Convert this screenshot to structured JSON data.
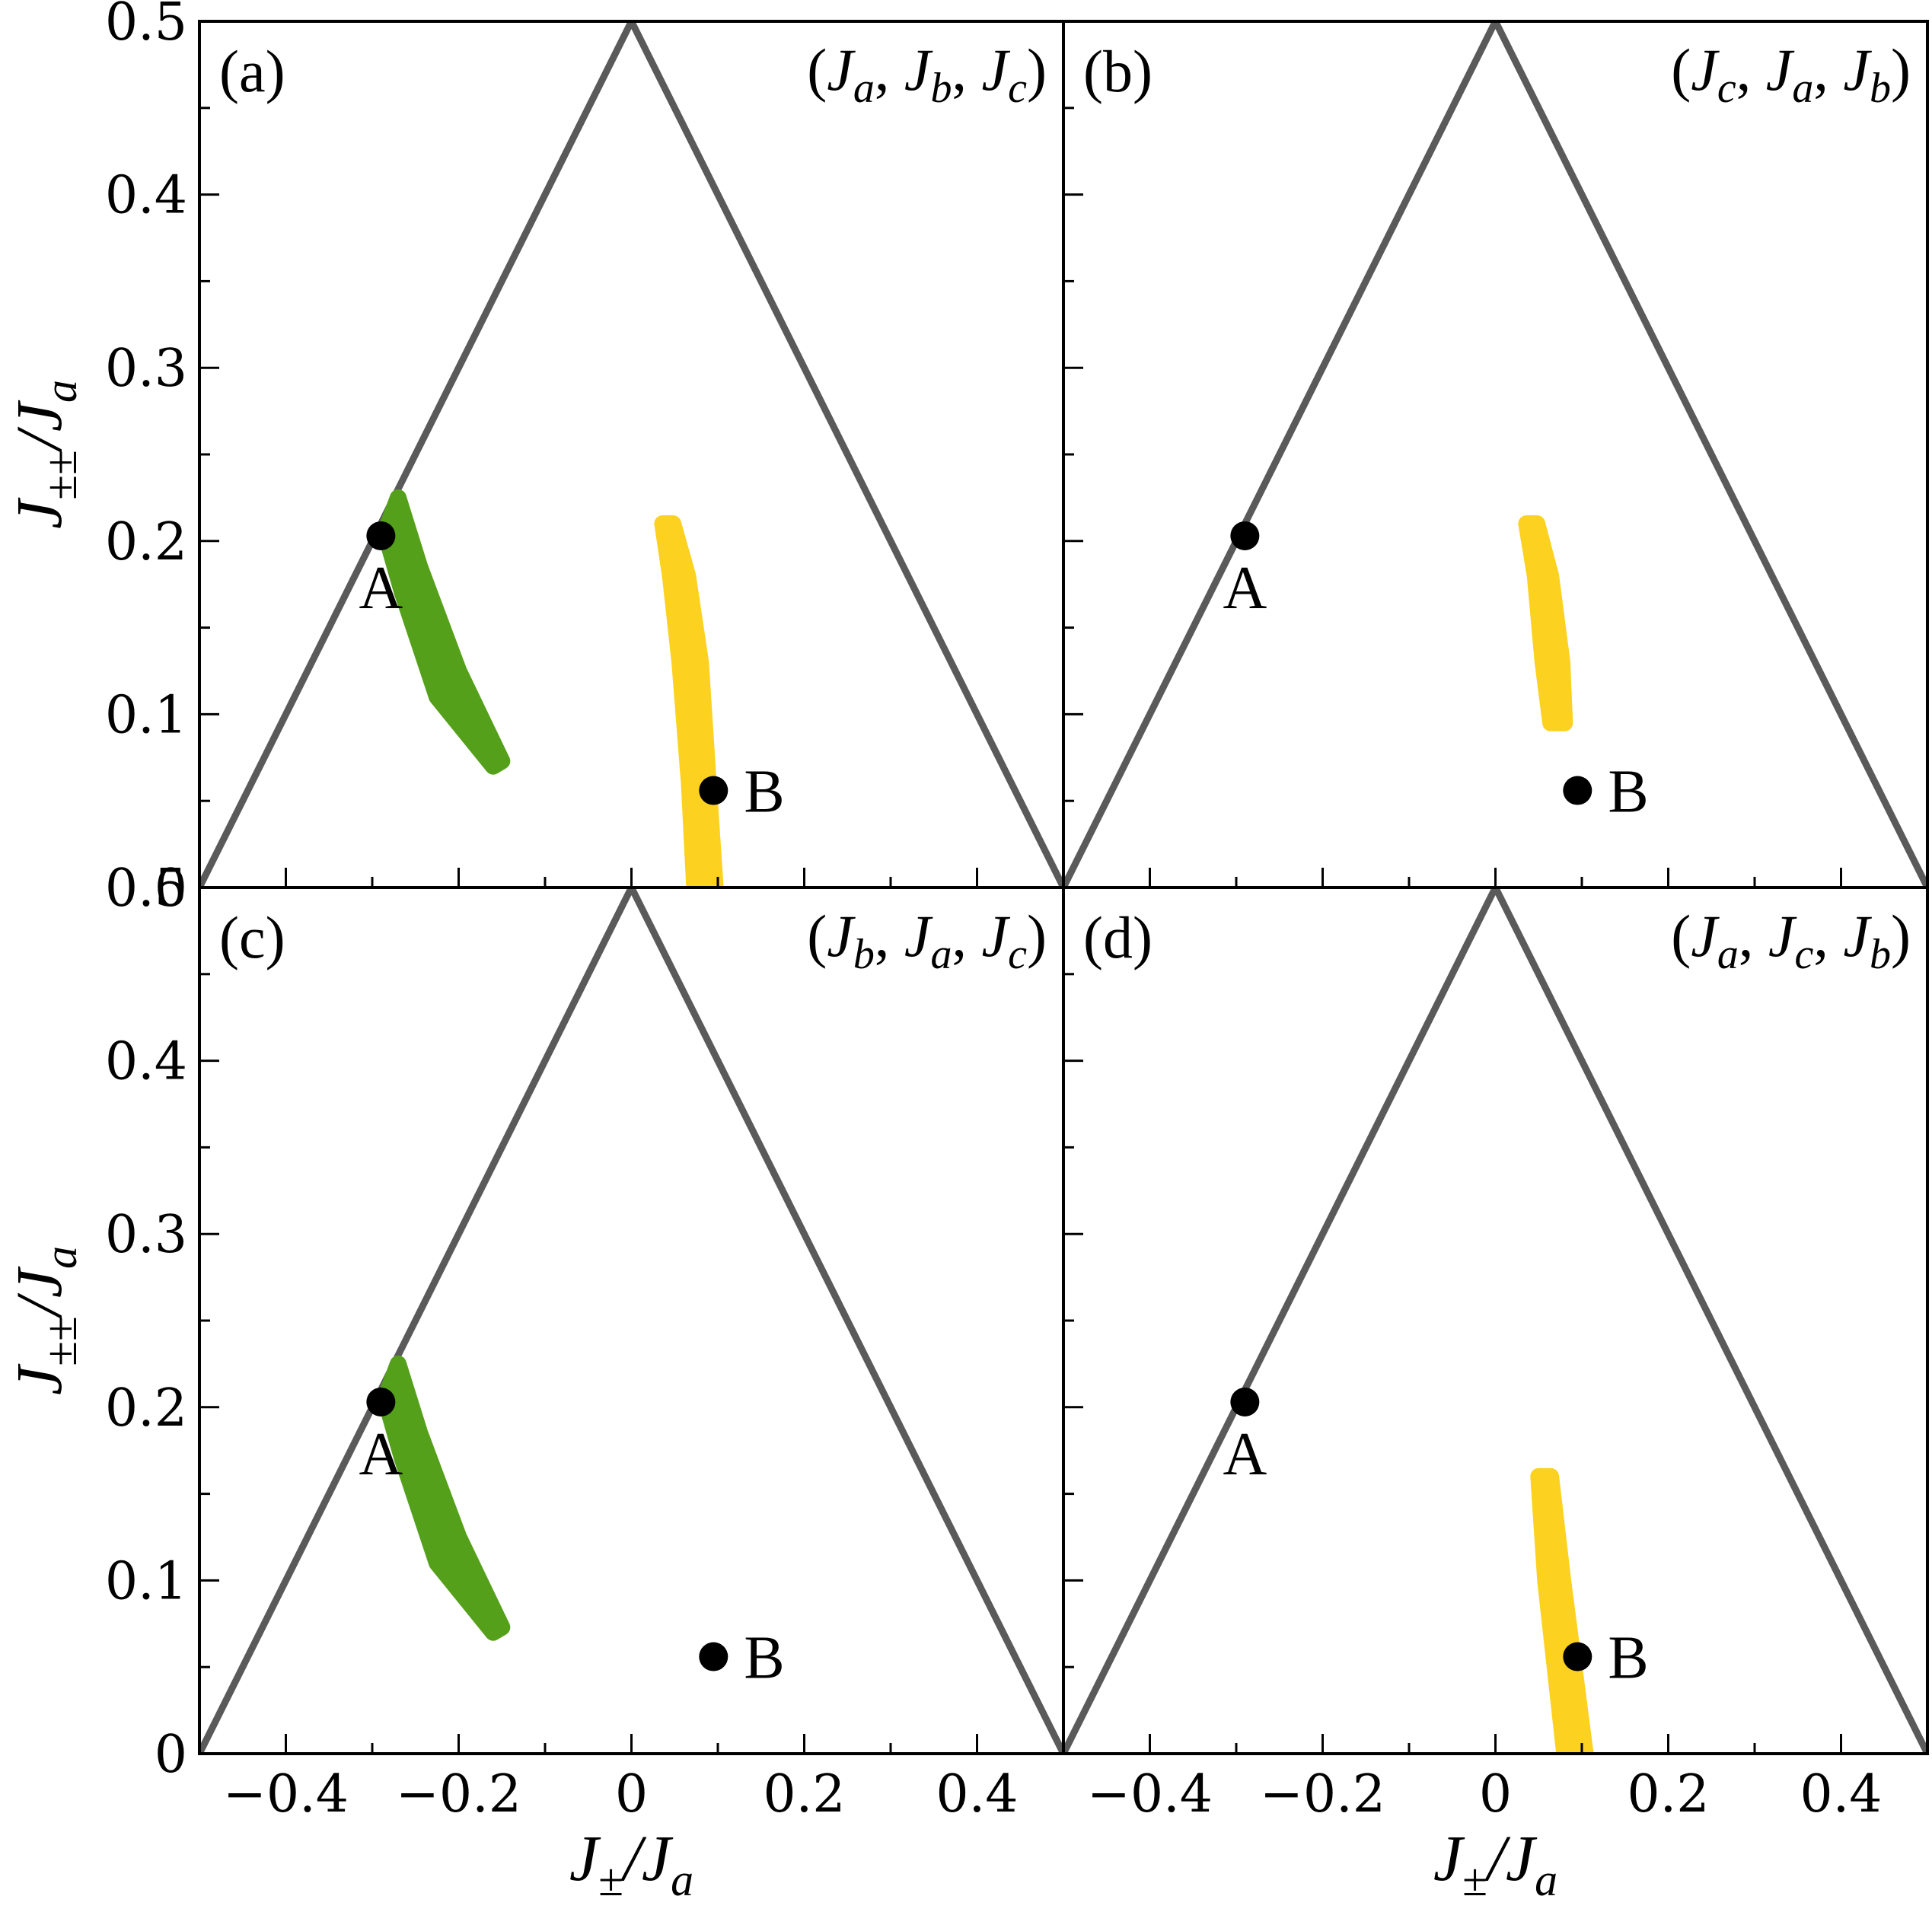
{
  "chart_data": {
    "type": "scatter",
    "colors": {
      "green": "#55a01a",
      "yellow": "#fdd120",
      "triangle": "#5a5a5a",
      "point": "#000000"
    },
    "xlim": [
      -0.5,
      0.5
    ],
    "ylim": [
      0,
      0.5
    ],
    "x_ticks": [
      -0.4,
      -0.2,
      0,
      0.2,
      0.4
    ],
    "x_tick_labels": [
      "−0.4",
      "−0.2",
      "0",
      "0.2",
      "0.4"
    ],
    "y_ticks": [
      0,
      0.1,
      0.2,
      0.3,
      0.4,
      0.5
    ],
    "y_tick_labels": [
      "0",
      "0.1",
      "0.2",
      "0.3",
      "0.4",
      "0.5"
    ],
    "xlabel": {
      "main": "J",
      "sub1": "±",
      "mid": "/J",
      "sub2": "a"
    },
    "ylabel": {
      "main": "J",
      "sub1": "±±",
      "mid": "/J",
      "sub2": "a"
    },
    "triangle": {
      "x": [
        -0.5,
        0,
        0.5
      ],
      "y": [
        0,
        0.5,
        0
      ]
    },
    "points": [
      {
        "label": "A",
        "x": -0.29,
        "y": 0.203
      },
      {
        "label": "B",
        "x": 0.095,
        "y": 0.056
      }
    ],
    "green_region": {
      "upper_edge": [
        [
          -0.27,
          0.225
        ],
        [
          -0.245,
          0.185
        ],
        [
          -0.2,
          0.125
        ],
        [
          -0.15,
          0.073
        ]
      ],
      "lower_edge": [
        [
          -0.285,
          0.205
        ],
        [
          -0.265,
          0.17
        ],
        [
          -0.225,
          0.11
        ],
        [
          -0.16,
          0.07
        ]
      ]
    },
    "yellow_region_a": {
      "center": [
        [
          0.042,
          0.21
        ],
        [
          0.055,
          0.18
        ],
        [
          0.068,
          0.13
        ],
        [
          0.078,
          0.06
        ],
        [
          0.085,
          0.0
        ]
      ],
      "half_width": [
        0.006,
        0.01,
        0.012,
        0.011,
        0.012
      ]
    },
    "yellow_region_b": {
      "center": [
        [
          0.042,
          0.21
        ],
        [
          0.055,
          0.18
        ],
        [
          0.066,
          0.13
        ],
        [
          0.072,
          0.095
        ]
      ],
      "half_width": [
        0.006,
        0.009,
        0.011,
        0.008
      ]
    },
    "yellow_region_d": {
      "center": [
        [
          0.057,
          0.16
        ],
        [
          0.068,
          0.1
        ],
        [
          0.08,
          0.05
        ],
        [
          0.092,
          0.0
        ]
      ],
      "half_width": [
        0.007,
        0.01,
        0.011,
        0.012
      ]
    },
    "panels": [
      {
        "id": "a",
        "label": "(a)",
        "perm": "(J_a, J_b, J_c)",
        "green": true,
        "yellow": "yellow_region_a"
      },
      {
        "id": "b",
        "label": "(b)",
        "perm": "(J_c, J_a, J_b)",
        "green": false,
        "yellow": "yellow_region_b"
      },
      {
        "id": "c",
        "label": "(c)",
        "perm": "(J_b, J_a, J_c)",
        "green": true,
        "yellow": null
      },
      {
        "id": "d",
        "label": "(d)",
        "perm": "(J_a, J_c, J_b)",
        "green": false,
        "yellow": "yellow_region_d"
      }
    ],
    "perm_parts": [
      [
        "a",
        "b",
        "c"
      ],
      [
        "c",
        "a",
        "b"
      ],
      [
        "b",
        "a",
        "c"
      ],
      [
        "a",
        "c",
        "b"
      ]
    ]
  }
}
